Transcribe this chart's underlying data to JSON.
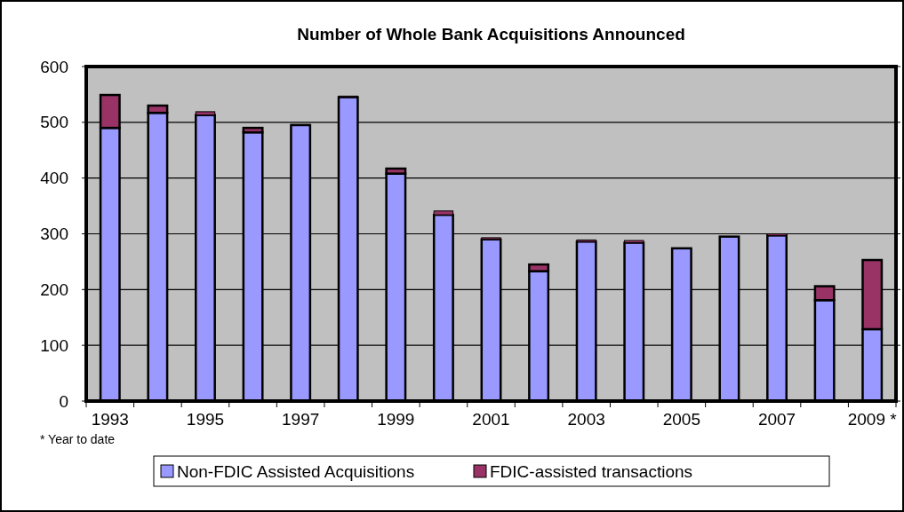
{
  "chart_data": {
    "type": "bar",
    "title": "Number of Whole Bank Acquisitions Announced",
    "categories": [
      "1993",
      null,
      "1995",
      null,
      "1997",
      null,
      "1999",
      null,
      "2001",
      null,
      "2003",
      null,
      "2005",
      null,
      "2007",
      null,
      "2009 *"
    ],
    "stacked": true,
    "series": [
      {
        "name": "Non-FDIC Assisted Acquisitions",
        "color": "#9999ff",
        "values": [
          490,
          517,
          513,
          482,
          495,
          545,
          408,
          334,
          290,
          233,
          286,
          284,
          274,
          295,
          297,
          181,
          129
        ]
      },
      {
        "name": "FDIC-assisted transactions",
        "color": "#993366",
        "values": [
          59,
          13,
          6,
          8,
          1,
          2,
          9,
          7,
          3,
          12,
          3,
          4,
          0,
          0,
          3,
          25,
          124
        ]
      }
    ],
    "ylim": [
      0,
      600
    ],
    "yticks": [
      0,
      100,
      200,
      300,
      400,
      500,
      600
    ],
    "grid": "y",
    "legend": "bottom",
    "annotations": [
      "* Year to date"
    ]
  }
}
